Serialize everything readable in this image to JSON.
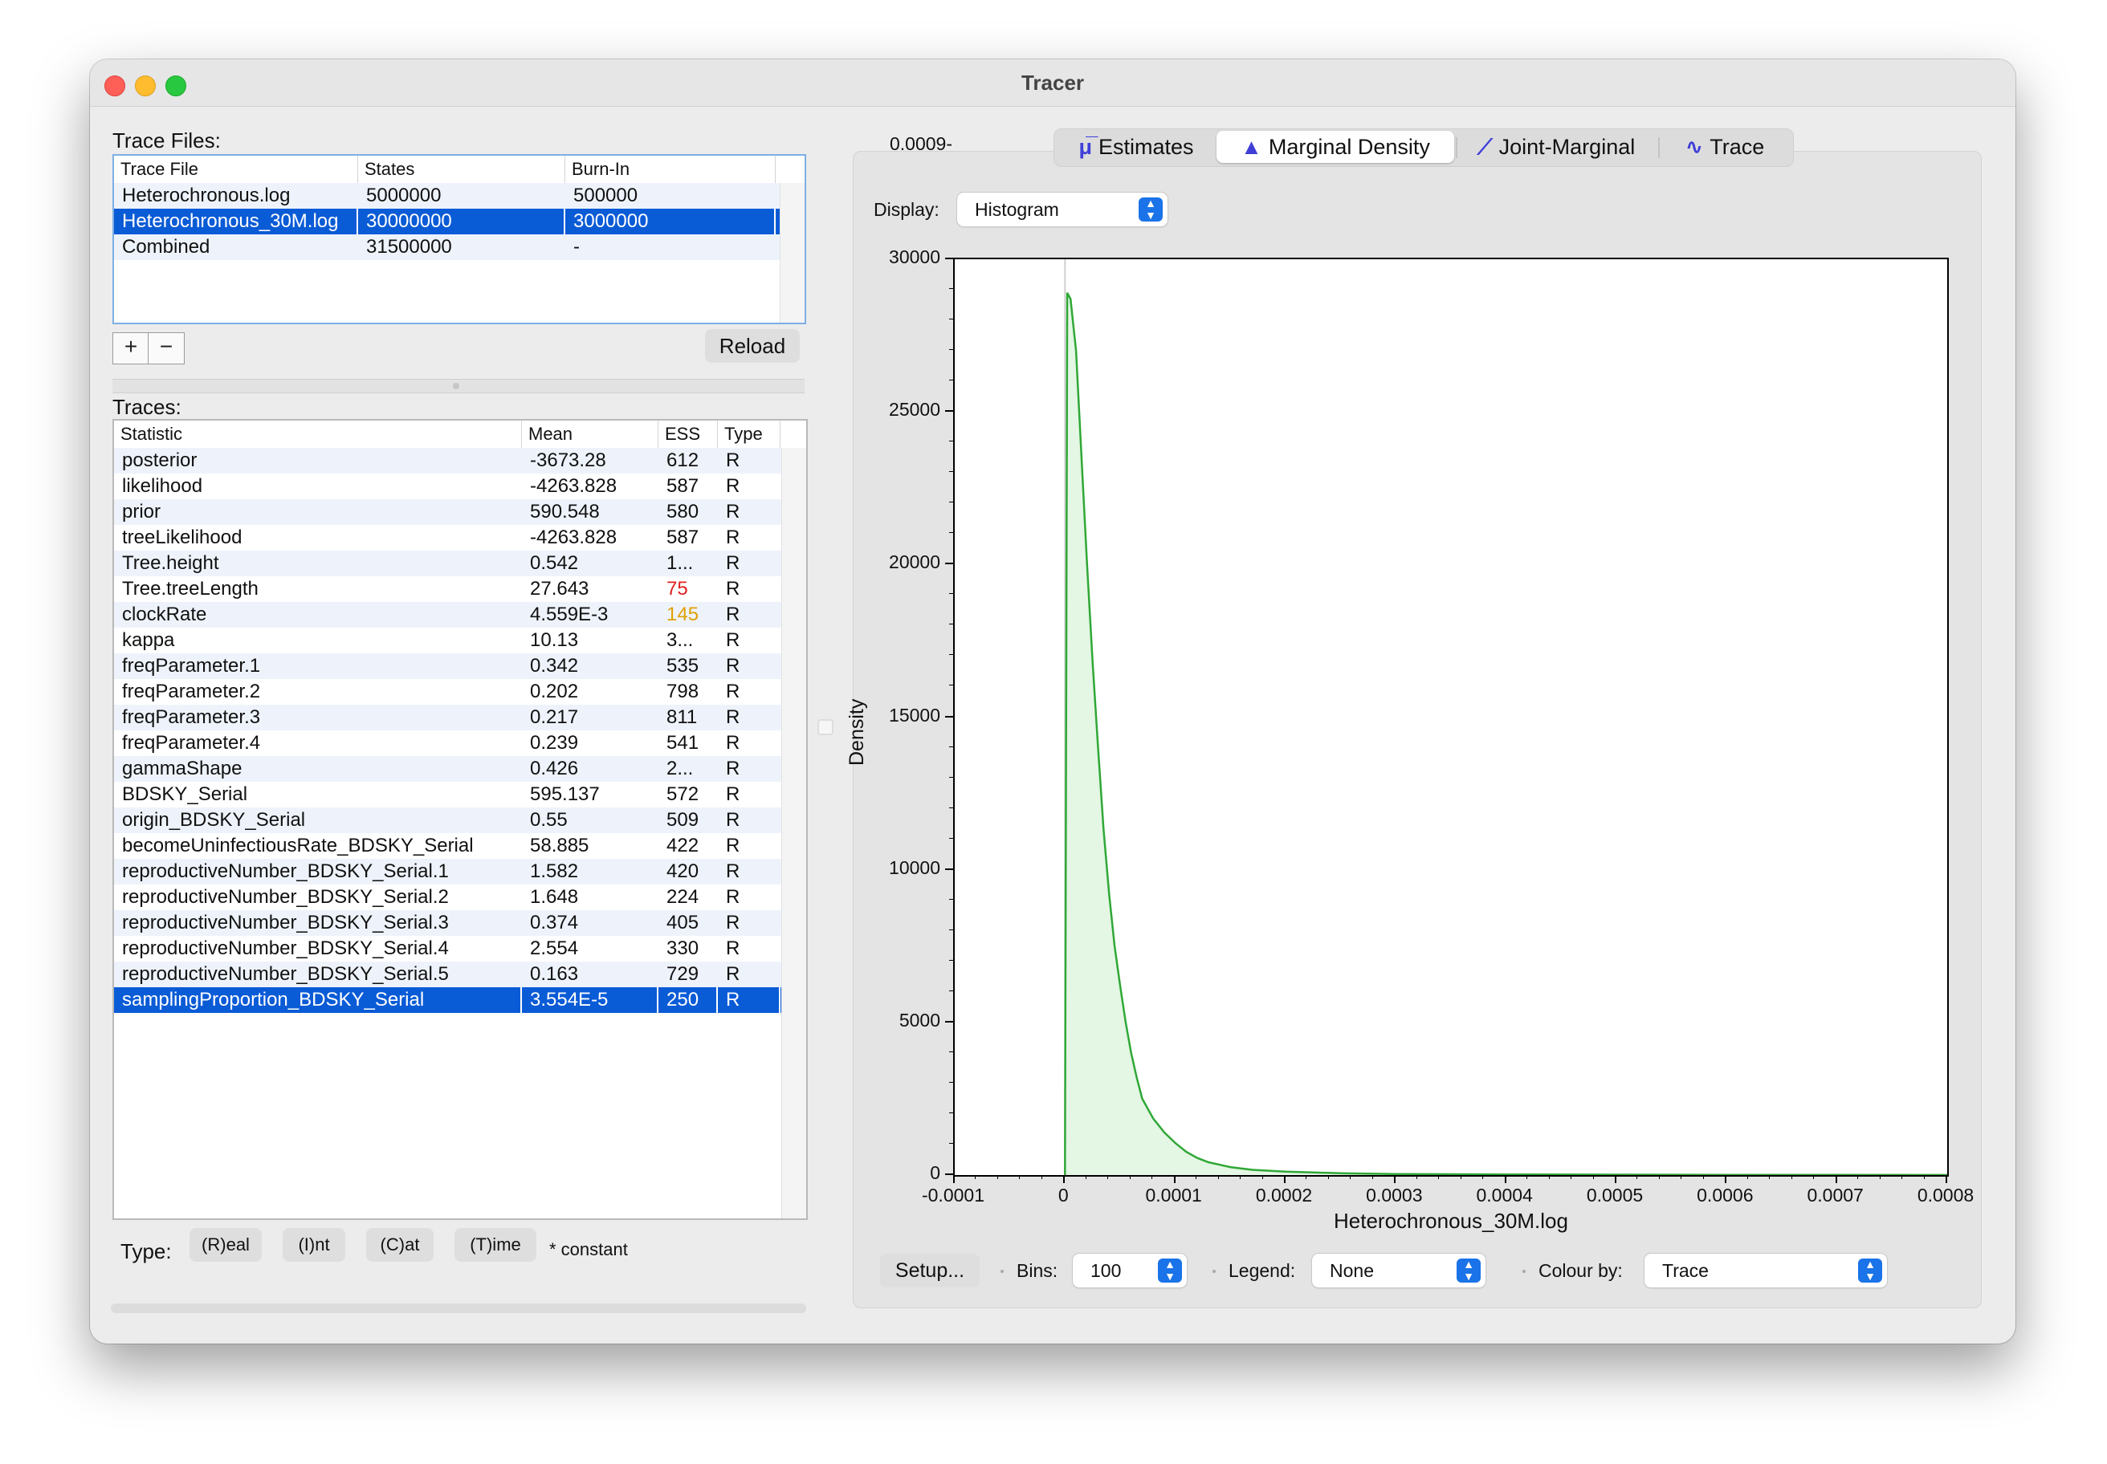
{
  "window": {
    "title": "Tracer"
  },
  "trace_files": {
    "label": "Trace Files:",
    "columns": [
      "Trace File",
      "States",
      "Burn-In"
    ],
    "rows": [
      {
        "file": "Heterochronous.log",
        "states": "5000000",
        "burnin": "500000"
      },
      {
        "file": "Heterochronous_30M.log",
        "states": "30000000",
        "burnin": "3000000"
      },
      {
        "file": "Combined",
        "states": "31500000",
        "burnin": "-"
      }
    ],
    "selected_row": 1,
    "add_label": "+",
    "remove_label": "−",
    "reload_label": "Reload"
  },
  "traces": {
    "label": "Traces:",
    "columns": [
      "Statistic",
      "Mean",
      "ESS",
      "Type"
    ],
    "rows": [
      {
        "stat": "posterior",
        "mean": "-3673.28",
        "ess": "612",
        "type": "R"
      },
      {
        "stat": "likelihood",
        "mean": "-4263.828",
        "ess": "587",
        "type": "R"
      },
      {
        "stat": "prior",
        "mean": "590.548",
        "ess": "580",
        "type": "R"
      },
      {
        "stat": "treeLikelihood",
        "mean": "-4263.828",
        "ess": "587",
        "type": "R"
      },
      {
        "stat": "Tree.height",
        "mean": "0.542",
        "ess": "1...",
        "type": "R"
      },
      {
        "stat": "Tree.treeLength",
        "mean": "27.643",
        "ess": "75",
        "type": "R",
        "ess_color": "#e02020"
      },
      {
        "stat": "clockRate",
        "mean": "4.559E-3",
        "ess": "145",
        "type": "R",
        "ess_color": "#e0a000"
      },
      {
        "stat": "kappa",
        "mean": "10.13",
        "ess": "3...",
        "type": "R"
      },
      {
        "stat": "freqParameter.1",
        "mean": "0.342",
        "ess": "535",
        "type": "R"
      },
      {
        "stat": "freqParameter.2",
        "mean": "0.202",
        "ess": "798",
        "type": "R"
      },
      {
        "stat": "freqParameter.3",
        "mean": "0.217",
        "ess": "811",
        "type": "R"
      },
      {
        "stat": "freqParameter.4",
        "mean": "0.239",
        "ess": "541",
        "type": "R"
      },
      {
        "stat": "gammaShape",
        "mean": "0.426",
        "ess": "2...",
        "type": "R"
      },
      {
        "stat": "BDSKY_Serial",
        "mean": "595.137",
        "ess": "572",
        "type": "R"
      },
      {
        "stat": "origin_BDSKY_Serial",
        "mean": "0.55",
        "ess": "509",
        "type": "R"
      },
      {
        "stat": "becomeUninfectiousRate_BDSKY_Serial",
        "mean": "58.885",
        "ess": "422",
        "type": "R"
      },
      {
        "stat": "reproductiveNumber_BDSKY_Serial.1",
        "mean": "1.582",
        "ess": "420",
        "type": "R"
      },
      {
        "stat": "reproductiveNumber_BDSKY_Serial.2",
        "mean": "1.648",
        "ess": "224",
        "type": "R"
      },
      {
        "stat": "reproductiveNumber_BDSKY_Serial.3",
        "mean": "0.374",
        "ess": "405",
        "type": "R"
      },
      {
        "stat": "reproductiveNumber_BDSKY_Serial.4",
        "mean": "2.554",
        "ess": "330",
        "type": "R"
      },
      {
        "stat": "reproductiveNumber_BDSKY_Serial.5",
        "mean": "0.163",
        "ess": "729",
        "type": "R"
      },
      {
        "stat": "samplingProportion_BDSKY_Serial",
        "mean": "3.554E-5",
        "ess": "250",
        "type": "R"
      }
    ],
    "selected_row": 21
  },
  "type_bar": {
    "label": "Type:",
    "buttons": [
      "(R)eal",
      "(I)nt",
      "(C)at",
      "(T)ime"
    ],
    "note": "* constant"
  },
  "tabs": [
    {
      "label": "Estimates",
      "icon": "mu-icon",
      "glyph": "μ̅",
      "active": false
    },
    {
      "label": "Marginal Density",
      "icon": "density-icon",
      "glyph": "▲",
      "active": true
    },
    {
      "label": "Joint-Marginal",
      "icon": "scatter-icon",
      "glyph": "⟋",
      "active": false
    },
    {
      "label": "Trace",
      "icon": "trace-icon",
      "glyph": "∿",
      "active": false
    }
  ],
  "display": {
    "label": "Display:",
    "value": "Histogram"
  },
  "top_axis_readout": "0.0009-",
  "bottom_controls": {
    "setup_label": "Setup...",
    "bins_label": "Bins:",
    "bins_value": "100",
    "legend_label": "Legend:",
    "legend_value": "None",
    "colour_label": "Colour by:",
    "colour_value": "Trace"
  },
  "colors": {
    "series": "#2fa836",
    "fill": "#e4f6e4",
    "selection": "#0a5bd6"
  },
  "chart_data": {
    "type": "area",
    "xlabel": "Heterochronous_30M.log",
    "ylabel": "Density",
    "xlim": [
      -0.0001,
      0.0008
    ],
    "ylim": [
      0,
      30000
    ],
    "x_ticks": [
      "-0.0001",
      "0",
      "0.0001",
      "0.0002",
      "0.0003",
      "0.0004",
      "0.0005",
      "0.0006",
      "0.0007",
      "0.0008"
    ],
    "y_ticks": [
      "0",
      "5000",
      "10000",
      "15000",
      "20000",
      "25000",
      "30000"
    ],
    "series": [
      {
        "x": [
          0,
          2e-06,
          5e-06,
          1e-05,
          1.5e-05,
          2e-05,
          2.5e-05,
          3e-05,
          3.5e-05,
          4e-05,
          4.5e-05,
          5e-05,
          5.5e-05,
          6e-05,
          6.5e-05,
          7e-05,
          8e-05,
          9e-05,
          0.0001,
          0.00011,
          0.00012,
          0.00013,
          0.00015,
          0.00017,
          0.0002,
          0.00025,
          0.0003,
          0.0004,
          0.0005,
          0.0006,
          0.0007,
          0.0008
        ],
        "y": [
          0,
          28900,
          28700,
          27000,
          23500,
          20000,
          16800,
          14000,
          11300,
          9200,
          7500,
          6200,
          5000,
          4000,
          3200,
          2500,
          1850,
          1400,
          1050,
          760,
          560,
          420,
          260,
          170,
          110,
          60,
          35,
          20,
          12,
          8,
          5,
          3
        ]
      }
    ]
  }
}
